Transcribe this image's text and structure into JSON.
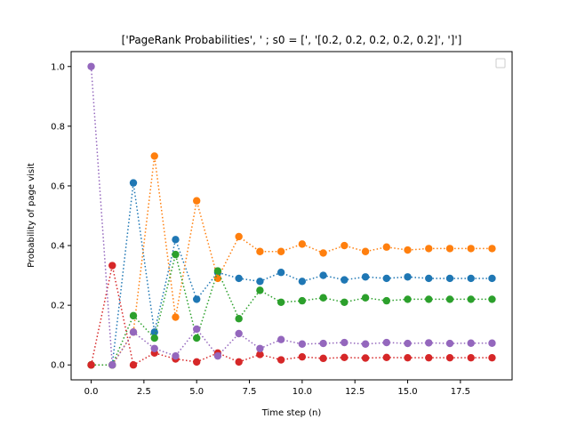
{
  "chart_data": {
    "type": "line",
    "title": "['PageRank Probabilities', ' ; s0 = [', '[0.2, 0.2, 0.2, 0.2, 0.2]', ']']",
    "xlabel": "Time step (n)",
    "ylabel": "Probability of page visit",
    "xlim": [
      -0.95,
      19.95
    ],
    "ylim": [
      -0.05,
      1.05
    ],
    "xticks": [
      0.0,
      2.5,
      5.0,
      7.5,
      10.0,
      12.5,
      15.0,
      17.5
    ],
    "xtick_labels": [
      "0.0",
      "2.5",
      "5.0",
      "7.5",
      "10.0",
      "12.5",
      "15.0",
      "17.5"
    ],
    "yticks": [
      0.0,
      0.2,
      0.4,
      0.6,
      0.8,
      1.0
    ],
    "ytick_labels": [
      "0.0",
      "0.2",
      "0.4",
      "0.6",
      "0.8",
      "1.0"
    ],
    "line_style": "dotted",
    "marker": "circle",
    "grid": false,
    "legend": "upper right, empty",
    "x": [
      0,
      1,
      2,
      3,
      4,
      5,
      6,
      7,
      8,
      9,
      10,
      11,
      12,
      13,
      14,
      15,
      16,
      17,
      18,
      19
    ],
    "series": [
      {
        "color": "#1f77b4",
        "values": [
          0.0,
          0.0,
          0.61,
          0.11,
          0.42,
          0.22,
          0.31,
          0.29,
          0.28,
          0.31,
          0.28,
          0.3,
          0.285,
          0.295,
          0.29,
          0.295,
          0.29,
          0.29,
          0.29,
          0.29
        ]
      },
      {
        "color": "#ff7f0e",
        "values": [
          0.0,
          0.0,
          0.11,
          0.7,
          0.16,
          0.55,
          0.29,
          0.43,
          0.38,
          0.38,
          0.405,
          0.375,
          0.4,
          0.38,
          0.395,
          0.385,
          0.39,
          0.39,
          0.39,
          0.39
        ]
      },
      {
        "color": "#2ca02c",
        "values": [
          0.0,
          0.0,
          0.165,
          0.09,
          0.37,
          0.09,
          0.315,
          0.155,
          0.25,
          0.21,
          0.215,
          0.225,
          0.21,
          0.225,
          0.215,
          0.22,
          0.22,
          0.22,
          0.22,
          0.22
        ]
      },
      {
        "color": "#d62728",
        "values": [
          0.0,
          0.333,
          0.0,
          0.04,
          0.02,
          0.01,
          0.04,
          0.01,
          0.035,
          0.017,
          0.027,
          0.022,
          0.025,
          0.023,
          0.025,
          0.024,
          0.024,
          0.024,
          0.024,
          0.024
        ]
      },
      {
        "color": "#9467bd",
        "values": [
          1.0,
          0.0,
          0.11,
          0.055,
          0.03,
          0.12,
          0.03,
          0.105,
          0.055,
          0.085,
          0.07,
          0.072,
          0.075,
          0.07,
          0.075,
          0.072,
          0.074,
          0.072,
          0.073,
          0.073
        ]
      }
    ]
  }
}
